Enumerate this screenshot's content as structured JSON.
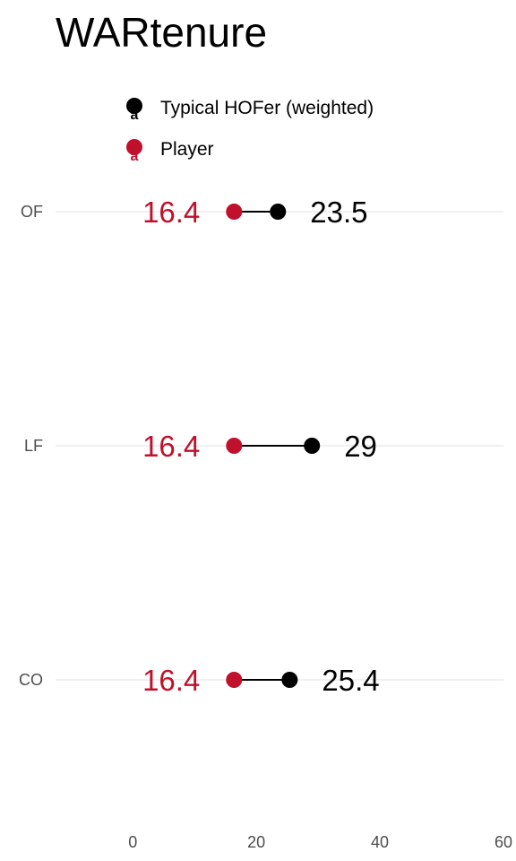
{
  "chart_data": {
    "type": "dumbbell",
    "title": "WARtenure",
    "xlabel": "",
    "ylabel": "",
    "xlim": [
      -12.5,
      60
    ],
    "x_ticks": [
      0,
      20,
      40,
      60
    ],
    "categories": [
      "OF",
      "LF",
      "CO"
    ],
    "grid": true,
    "legend_position": "top-left",
    "legend_key_glyph": "a",
    "series": [
      {
        "name": "Typical HOFer (weighted)",
        "color": "#000000",
        "values": [
          23.5,
          29,
          25.4
        ],
        "labels": [
          "23.5",
          "29",
          "25.4"
        ]
      },
      {
        "name": "Player",
        "color": "#c0102b",
        "values": [
          16.4,
          16.4,
          16.4
        ],
        "labels": [
          "16.4",
          "16.4",
          "16.4"
        ]
      }
    ]
  }
}
